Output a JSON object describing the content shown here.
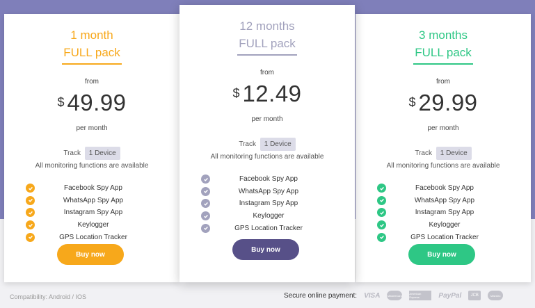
{
  "plans": [
    {
      "title": "1 month",
      "subtitle": "FULL pack",
      "from": "from",
      "currency": "$",
      "price": "49.99",
      "per": "per month",
      "track_label": "Track",
      "track_badge": "1 Device",
      "monitoring": "All monitoring functions are available",
      "features": [
        "Facebook Spy App",
        "WhatsApp Spy App",
        "Instagram Spy App",
        "Keylogger",
        "GPS Location Tracker"
      ],
      "button": "Buy now",
      "accent": "#f7a81b"
    },
    {
      "title": "12 months",
      "subtitle": "FULL pack",
      "from": "from",
      "currency": "$",
      "price": "12.49",
      "per": "per month",
      "track_label": "Track",
      "track_badge": "1 Device",
      "monitoring": "All monitoring functions are available",
      "features": [
        "Facebook Spy App",
        "WhatsApp Spy App",
        "Instagram Spy App",
        "Keylogger",
        "GPS Location Tracker"
      ],
      "button": "Buy now",
      "accent": "#a2a2bd",
      "button_color": "#575088"
    },
    {
      "title": "3 months",
      "subtitle": "FULL pack",
      "from": "from",
      "currency": "$",
      "price": "29.99",
      "per": "per month",
      "track_label": "Track",
      "track_badge": "1 Device",
      "monitoring": "All monitoring functions are available",
      "features": [
        "Facebook Spy App",
        "WhatsApp Spy App",
        "Instagram Spy App",
        "Keylogger",
        "GPS Location Tracker"
      ],
      "button": "Buy now",
      "accent": "#2ec785"
    }
  ],
  "footer": {
    "compatibility": "Compatibility: Android / IOS",
    "payment_label": "Secure online payment:",
    "payment_logos": [
      "VISA",
      "MasterCard",
      "American Express",
      "PayPal",
      "JCB",
      "Maestro"
    ]
  },
  "icons": {
    "feature_check": "check-circle-icon"
  }
}
